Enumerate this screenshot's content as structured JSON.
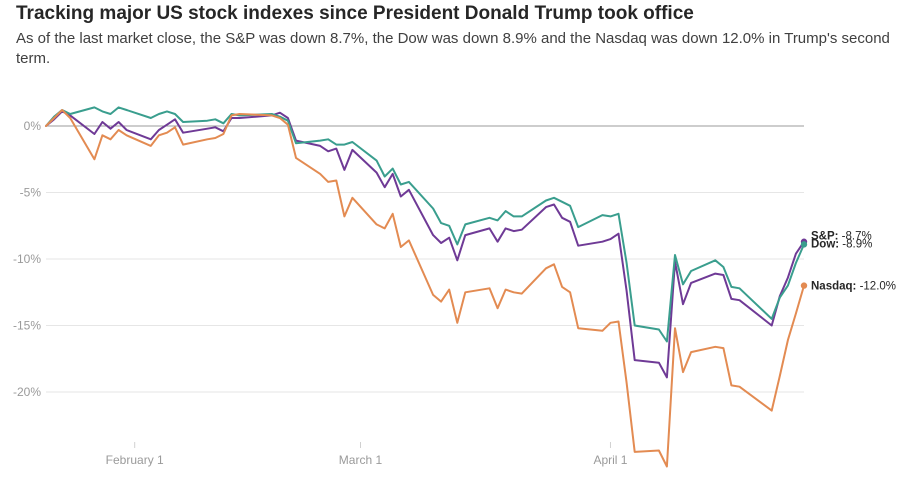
{
  "header": {
    "title": "Tracking major US stock indexes since President Donald Trump took office",
    "subtitle": "As of the last market close, the S&P was down 8.7%, the Dow was down 8.9% and the Nasdaq was down 12.0% in Trump's second term."
  },
  "chart_data": {
    "type": "line",
    "title": "Tracking major US stock indexes since President Donald Trump took office",
    "subtitle": "As of the last market close, the S&P was down 8.7%, the Dow was down 8.9% and the Nasdaq was down 12.0% in Trump's second term.",
    "x_ticks": [
      "February 1",
      "March 1",
      "April 1"
    ],
    "y_ticks": [
      "0%",
      "-5%",
      "-10%",
      "-15%",
      "-20%"
    ],
    "y_tick_values": [
      0,
      -5,
      -10,
      -15,
      -20
    ],
    "ylim": [
      -23.5,
      3
    ],
    "grid": "horizontal",
    "zero_line": true,
    "x_dates": [
      "2025-01-21",
      "2025-01-22",
      "2025-01-23",
      "2025-01-24",
      "2025-01-27",
      "2025-01-28",
      "2025-01-29",
      "2025-01-30",
      "2025-01-31",
      "2025-02-03",
      "2025-02-04",
      "2025-02-05",
      "2025-02-06",
      "2025-02-07",
      "2025-02-10",
      "2025-02-11",
      "2025-02-12",
      "2025-02-13",
      "2025-02-14",
      "2025-02-18",
      "2025-02-19",
      "2025-02-20",
      "2025-02-21",
      "2025-02-24",
      "2025-02-25",
      "2025-02-26",
      "2025-02-27",
      "2025-02-28",
      "2025-03-03",
      "2025-03-04",
      "2025-03-05",
      "2025-03-06",
      "2025-03-07",
      "2025-03-10",
      "2025-03-11",
      "2025-03-12",
      "2025-03-13",
      "2025-03-14",
      "2025-03-17",
      "2025-03-18",
      "2025-03-19",
      "2025-03-20",
      "2025-03-21",
      "2025-03-24",
      "2025-03-25",
      "2025-03-26",
      "2025-03-27",
      "2025-03-28",
      "2025-03-31",
      "2025-04-01",
      "2025-04-02",
      "2025-04-03",
      "2025-04-04",
      "2025-04-07",
      "2025-04-08",
      "2025-04-09",
      "2025-04-10",
      "2025-04-11",
      "2025-04-14",
      "2025-04-15",
      "2025-04-16",
      "2025-04-17",
      "2025-04-21",
      "2025-04-22",
      "2025-04-23",
      "2025-04-24",
      "2025-04-25"
    ],
    "series": [
      {
        "name": "S&P",
        "color": "#6f3a96",
        "end_label": "S&P:",
        "end_value": "-8.7%",
        "values": [
          0,
          0.5,
          1.1,
          0.8,
          -0.6,
          0.3,
          -0.2,
          0.3,
          -0.3,
          -1.0,
          -0.3,
          0.1,
          0.5,
          -0.5,
          -0.2,
          -0.1,
          -0.4,
          0.6,
          0.6,
          0.8,
          1.0,
          0.6,
          -1.1,
          -1.5,
          -1.9,
          -1.7,
          -3.3,
          -1.8,
          -3.5,
          -4.6,
          -3.6,
          -5.3,
          -4.8,
          -8.2,
          -8.8,
          -8.4,
          -10.1,
          -8.2,
          -7.7,
          -8.7,
          -7.7,
          -7.9,
          -7.8,
          -6.1,
          -5.9,
          -6.9,
          -7.2,
          -9.0,
          -8.7,
          -8.5,
          -8.1,
          -12.4,
          -17.6,
          -17.8,
          -18.9,
          -10.2,
          -13.4,
          -11.8,
          -11.1,
          -11.2,
          -13.0,
          -13.1,
          -15.0,
          -12.8,
          -11.4,
          -9.6,
          -8.7
        ]
      },
      {
        "name": "Dow",
        "color": "#3a9e8e",
        "end_label": "Dow:",
        "end_value": "-8.9%",
        "values": [
          0,
          0.7,
          1.2,
          0.9,
          1.4,
          1.1,
          0.9,
          1.4,
          1.2,
          0.6,
          0.9,
          1.1,
          0.9,
          0.3,
          0.4,
          0.5,
          0.2,
          0.9,
          0.8,
          0.9,
          0.7,
          0.4,
          -1.3,
          -1.1,
          -1.0,
          -1.4,
          -1.4,
          -1.2,
          -2.6,
          -3.8,
          -3.2,
          -4.4,
          -4.2,
          -6.2,
          -7.3,
          -7.5,
          -8.9,
          -7.4,
          -6.9,
          -7.1,
          -6.4,
          -6.8,
          -6.8,
          -5.6,
          -5.4,
          -5.7,
          -6.0,
          -7.6,
          -6.7,
          -6.8,
          -6.6,
          -10.3,
          -15.0,
          -15.3,
          -16.2,
          -9.7,
          -11.9,
          -10.9,
          -10.1,
          -10.6,
          -12.1,
          -12.2,
          -14.5,
          -12.9,
          -12.0,
          -10.3,
          -8.9
        ]
      },
      {
        "name": "Nasdaq",
        "color": "#e38b52",
        "end_label": "Nasdaq:",
        "end_value": "-12.0%",
        "values": [
          0,
          0.6,
          1.2,
          0.6,
          -2.5,
          -0.7,
          -1.0,
          -0.3,
          -0.7,
          -1.5,
          -0.7,
          -0.5,
          -0.1,
          -1.4,
          -1.0,
          -0.9,
          -0.6,
          0.8,
          0.9,
          0.8,
          0.6,
          0.1,
          -2.4,
          -3.6,
          -4.2,
          -4.1,
          -6.8,
          -5.4,
          -7.4,
          -7.7,
          -6.6,
          -9.1,
          -8.6,
          -12.7,
          -13.2,
          -12.3,
          -14.8,
          -12.5,
          -12.2,
          -13.7,
          -12.3,
          -12.5,
          -12.6,
          -10.7,
          -10.4,
          -12.1,
          -12.5,
          -15.2,
          -15.4,
          -14.8,
          -14.7,
          -19.3,
          -24.5,
          -24.4,
          -25.6,
          -15.2,
          -18.5,
          -17.0,
          -16.6,
          -16.7,
          -19.5,
          -19.6,
          -21.4,
          -18.8,
          -16.1,
          -14.1,
          -12.0
        ]
      }
    ]
  }
}
